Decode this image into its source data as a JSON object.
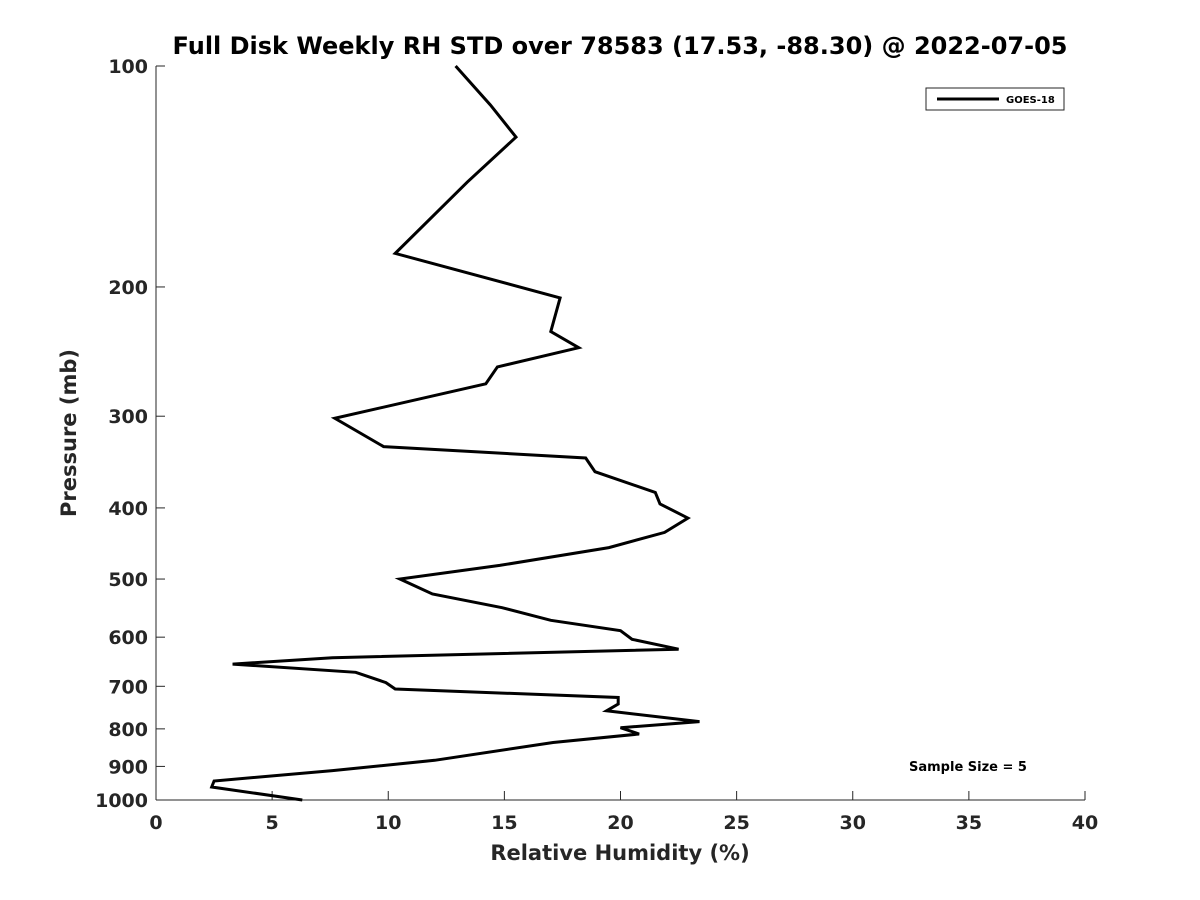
{
  "chart_data": {
    "type": "line",
    "title": "Full Disk Weekly RH STD over 78583 (17.53, -88.30) @ 2022-07-05",
    "xlabel": "Relative Humidity (%)",
    "ylabel": "Pressure (mb)",
    "xlim": [
      0,
      40
    ],
    "ylim": [
      1000,
      100
    ],
    "yscale": "log",
    "xticks": [
      0,
      5,
      10,
      15,
      20,
      25,
      30,
      35,
      40
    ],
    "yticks": [
      100,
      200,
      300,
      400,
      500,
      600,
      700,
      800,
      900,
      1000
    ],
    "grid": false,
    "legend": {
      "position": "top-right",
      "entries": [
        "GOES-18"
      ]
    },
    "annotation": "Sample Size = 5",
    "series": [
      {
        "name": "GOES-18",
        "x": [
          12.9,
          14.4,
          15.5,
          13.4,
          10.3,
          17.4,
          17.0,
          18.2,
          14.7,
          14.2,
          7.7,
          9.8,
          18.5,
          18.9,
          21.5,
          21.7,
          22.9,
          21.9,
          19.5,
          14.8,
          10.5,
          11.9,
          14.9,
          17.0,
          20.0,
          20.5,
          22.5,
          7.6,
          3.3,
          8.6,
          9.9,
          10.3,
          19.9,
          19.9,
          19.4,
          23.4,
          20.0,
          20.8,
          17.1,
          12.0,
          7.6,
          2.5,
          2.4,
          6.3
        ],
        "y": [
          100,
          113,
          125,
          144,
          180,
          207,
          230,
          242,
          257,
          271,
          302,
          330,
          342,
          357,
          381,
          395,
          413,
          432,
          453,
          479,
          500,
          524,
          547,
          569,
          588,
          604,
          623,
          640,
          653,
          670,
          692,
          706,
          725,
          740,
          756,
          782,
          797,
          813,
          835,
          883,
          912,
          942,
          960,
          1000
        ]
      }
    ]
  }
}
